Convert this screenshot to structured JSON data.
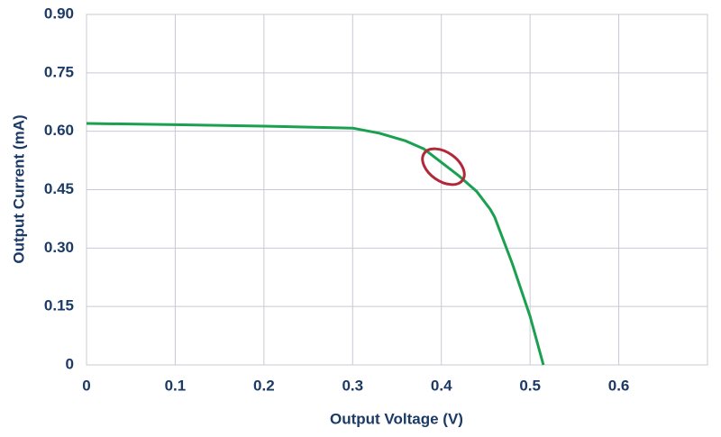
{
  "chart_data": {
    "type": "line",
    "xlabel": "Output Voltage (V)",
    "ylabel": "Output Current  (mA)",
    "x": [
      0,
      0.1,
      0.2,
      0.3,
      0.33,
      0.36,
      0.38,
      0.4,
      0.42,
      0.44,
      0.455,
      0.46,
      0.48,
      0.5,
      0.515
    ],
    "values": [
      0.62,
      0.617,
      0.613,
      0.608,
      0.595,
      0.575,
      0.555,
      0.52,
      0.485,
      0.445,
      0.4,
      0.38,
      0.26,
      0.125,
      0
    ],
    "color": "#1aa04f",
    "xlim": [
      0,
      0.7
    ],
    "ylim": [
      0,
      0.9
    ],
    "xticks": [
      0,
      0.1,
      0.2,
      0.3,
      0.4,
      0.5,
      0.6
    ],
    "yticks": [
      0,
      0.15,
      {
        "value": 0.3,
        "label": "0.30"
      },
      0.45,
      {
        "value": 0.6,
        "label": "0.60"
      },
      0.75,
      {
        "value": 0.9,
        "label": "0.90"
      }
    ],
    "grid": true
  }
}
